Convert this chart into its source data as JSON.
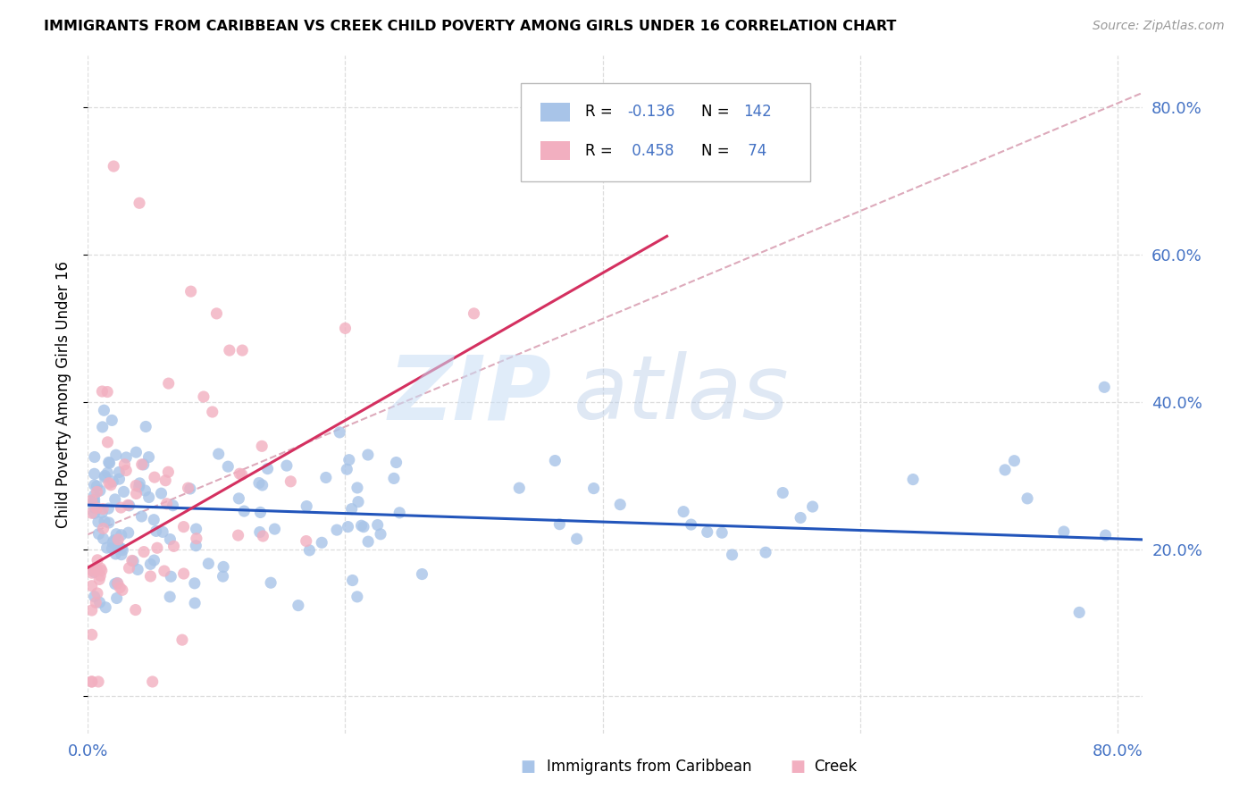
{
  "title": "IMMIGRANTS FROM CARIBBEAN VS CREEK CHILD POVERTY AMONG GIRLS UNDER 16 CORRELATION CHART",
  "source": "Source: ZipAtlas.com",
  "ylabel": "Child Poverty Among Girls Under 16",
  "ytick_labels": [
    "",
    "20.0%",
    "40.0%",
    "60.0%",
    "80.0%"
  ],
  "xtick_labels": [
    "0.0%",
    "",
    "",
    "",
    "80.0%"
  ],
  "legend_r_blue": "-0.136",
  "legend_n_blue": "142",
  "legend_r_pink": "0.458",
  "legend_n_pink": "74",
  "blue_color": "#a8c4e8",
  "pink_color": "#f2afc0",
  "blue_line_color": "#2255bb",
  "pink_line_color": "#d43060",
  "diagonal_color": "#ddaabb",
  "text_color": "#4472c4",
  "legend_label_blue": "Immigrants from Caribbean",
  "legend_label_pink": "Creek",
  "xlim": [
    0.0,
    0.82
  ],
  "ylim": [
    -0.05,
    0.87
  ],
  "figsize": [
    14.06,
    8.92
  ],
  "dpi": 100
}
